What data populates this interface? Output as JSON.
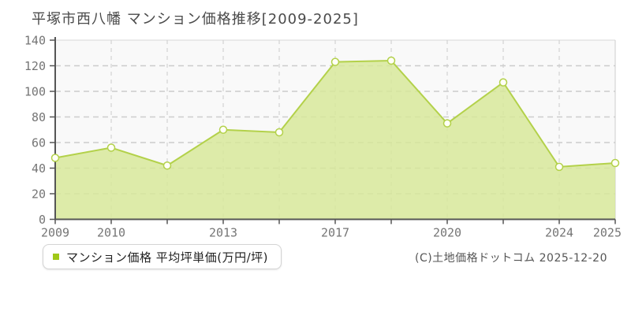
{
  "title": "平塚市西八幡 マンション価格推移[2009-2025]",
  "legend": {
    "label": "マンション価格 平均坪単価(万円/坪)",
    "marker_color": "#a0c818"
  },
  "copyright": "(C)土地価格ドットコム 2025-12-20",
  "colors": {
    "plot_bg": "#f9f9f9",
    "plot_top_border": "#e4e4e4",
    "plot_right_border": "#cccccc",
    "grid": "#cccccc",
    "axis": "#555555",
    "area_fill": "#d7e897",
    "line": "#b3d14a",
    "marker_fill": "#fffff6",
    "tick_label": "#757575"
  },
  "chart_data": {
    "type": "area",
    "title": "平塚市西八幡 マンション価格推移[2009-2025]",
    "series_name": "マンション価格",
    "ylabel": "平均坪単価(万円/坪)",
    "x_tick_labels": [
      "2009",
      "2010",
      "",
      "2013",
      "",
      "2017",
      "",
      "2020",
      "",
      "2024",
      "2025"
    ],
    "values": [
      48,
      56,
      42,
      70,
      68,
      123,
      124,
      75,
      107,
      41,
      44
    ],
    "ylim": [
      0,
      140
    ],
    "y_ticks": [
      0,
      20,
      40,
      60,
      80,
      100,
      120,
      140
    ],
    "grid": true,
    "legend_position": "bottom-left"
  }
}
